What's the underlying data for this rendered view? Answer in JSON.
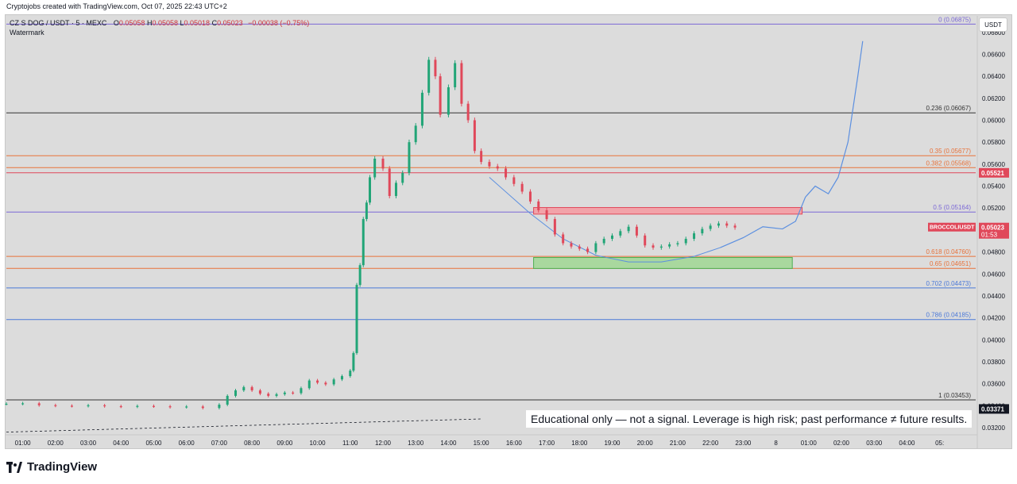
{
  "header": {
    "credit": "Cryptojobs created with TradingView.com, Oct 07, 2025 22:43 UTC+2",
    "symbol": "CZ S DOG / USDT · 5 · MEXC",
    "open_label": "O",
    "open": "0.05058",
    "high_label": "H",
    "high": "0.05058",
    "low_label": "L",
    "low": "0.05018",
    "close_label": "C",
    "close": "0.05023",
    "change": "−0.00038 (−0.75%)",
    "watermark": "Watermark",
    "currency_button": "USDT"
  },
  "footer": {
    "disclaimer": "Educational only — not a signal. Leverage is high risk; past performance ≠ future results.",
    "brand": "TradingView",
    "brand_icon": "tradingview-logo-icon"
  },
  "colors": {
    "background": "#dcdcdc",
    "up": "#22a577",
    "down": "#e0485a",
    "fib_purple": "#7b68d6",
    "fib_black": "#333333",
    "fib_orange": "#e8723a",
    "fib_blue": "#4a78d8",
    "projection": "#5b8fe0"
  },
  "chart_data": {
    "type": "candlestick",
    "symbol": "CZ S DOG / USDT",
    "interval": "5",
    "exchange": "MEXC",
    "ylim": [
      0.0315,
      0.0695
    ],
    "x_range_hours": [
      0.5,
      30.1
    ],
    "x_ticks": [
      {
        "hour": 1,
        "label": "01:00"
      },
      {
        "hour": 2,
        "label": "02:00"
      },
      {
        "hour": 3,
        "label": "03:00"
      },
      {
        "hour": 4,
        "label": "04:00"
      },
      {
        "hour": 5,
        "label": "05:00"
      },
      {
        "hour": 6,
        "label": "06:00"
      },
      {
        "hour": 7,
        "label": "07:00"
      },
      {
        "hour": 8,
        "label": "08:00"
      },
      {
        "hour": 9,
        "label": "09:00"
      },
      {
        "hour": 10,
        "label": "10:00"
      },
      {
        "hour": 11,
        "label": "11:00"
      },
      {
        "hour": 12,
        "label": "12:00"
      },
      {
        "hour": 13,
        "label": "13:00"
      },
      {
        "hour": 14,
        "label": "14:00"
      },
      {
        "hour": 15,
        "label": "15:00"
      },
      {
        "hour": 16,
        "label": "16:00"
      },
      {
        "hour": 17,
        "label": "17:00"
      },
      {
        "hour": 18,
        "label": "18:00"
      },
      {
        "hour": 19,
        "label": "19:00"
      },
      {
        "hour": 20,
        "label": "20:00"
      },
      {
        "hour": 21,
        "label": "21:00"
      },
      {
        "hour": 22,
        "label": "22:00"
      },
      {
        "hour": 23,
        "label": "23:00"
      },
      {
        "hour": 24,
        "label": "8"
      },
      {
        "hour": 25,
        "label": "01:00"
      },
      {
        "hour": 26,
        "label": "02:00"
      },
      {
        "hour": 27,
        "label": "03:00"
      },
      {
        "hour": 28,
        "label": "04:00"
      },
      {
        "hour": 29,
        "label": "05:"
      }
    ],
    "y_ticks": [
      "0.06800",
      "0.06600",
      "0.06400",
      "0.06200",
      "0.06000",
      "0.05800",
      "0.05600",
      "0.05400",
      "0.05200",
      "0.05000",
      "0.04800",
      "0.04600",
      "0.04400",
      "0.04200",
      "0.04000",
      "0.03800",
      "0.03600",
      "0.03400",
      "0.03200"
    ],
    "fib_levels": [
      {
        "ratio": "0",
        "price": 0.06875,
        "label": "0 (0.06875)",
        "color": "#7b68d6"
      },
      {
        "ratio": "0.236",
        "price": 0.06067,
        "label": "0.236 (0.06067)",
        "color": "#333333"
      },
      {
        "ratio": "0.35",
        "price": 0.05677,
        "label": "0.35 (0.05677)",
        "color": "#e8723a"
      },
      {
        "ratio": "0.382",
        "price": 0.05568,
        "label": "0.382 (0.05568)",
        "color": "#e8723a"
      },
      {
        "ratio": "0.5",
        "price": 0.05164,
        "label": "0.5 (0.05164)",
        "color": "#7b68d6"
      },
      {
        "ratio": "0.618",
        "price": 0.0476,
        "label": "0.618 (0.04760)",
        "color": "#e8723a"
      },
      {
        "ratio": "0.65",
        "price": 0.04651,
        "label": "0.65 (0.04651)",
        "color": "#e8723a"
      },
      {
        "ratio": "0.702",
        "price": 0.04473,
        "label": "0.702 (0.04473)",
        "color": "#4a78d8"
      },
      {
        "ratio": "0.786",
        "price": 0.04185,
        "label": "0.786 (0.04185)",
        "color": "#4a78d8"
      },
      {
        "ratio": "1",
        "price": 0.03453,
        "label": "1 (0.03453)",
        "color": "#333333"
      }
    ],
    "horizontal_line": {
      "price": 0.05521,
      "color": "#e0485a"
    },
    "price_tags": [
      {
        "text": "0.05521",
        "price": 0.05521,
        "color": "#e0485a"
      },
      {
        "text": "0.03371",
        "price": 0.03371,
        "color": "#131722"
      }
    ],
    "current_price_tag": {
      "symbol": "BROCCOLIUSDT",
      "price": 0.05023,
      "price_text": "0.05023",
      "countdown": "01:53",
      "color": "#e0485a"
    },
    "zones": [
      {
        "name": "resistance",
        "x_start": 16.6,
        "x_end": 24.8,
        "y_low": 0.05145,
        "y_high": 0.05205,
        "fill": "#f2a3a9",
        "stroke": "#e0485a"
      },
      {
        "name": "support",
        "x_start": 16.6,
        "x_end": 24.5,
        "y_low": 0.0465,
        "y_high": 0.0475,
        "fill": "#a9d89e",
        "stroke": "#4caf50"
      }
    ],
    "arc": [
      [
        15.25,
        0.0548
      ],
      [
        16.5,
        0.0515
      ],
      [
        17.5,
        0.0492
      ],
      [
        18.5,
        0.0477
      ],
      [
        19.5,
        0.0471
      ],
      [
        20.5,
        0.0471
      ],
      [
        21.5,
        0.0476
      ],
      [
        22.3,
        0.0484
      ]
    ],
    "projection": [
      [
        22.3,
        0.0484
      ],
      [
        23.0,
        0.0493
      ],
      [
        23.6,
        0.0503
      ],
      [
        24.2,
        0.0501
      ],
      [
        24.6,
        0.0508
      ],
      [
        24.9,
        0.053
      ],
      [
        25.2,
        0.054
      ],
      [
        25.6,
        0.0533
      ],
      [
        25.9,
        0.0548
      ],
      [
        26.2,
        0.058
      ],
      [
        26.5,
        0.064
      ],
      [
        26.65,
        0.0672
      ]
    ],
    "dashed_baseline": [
      [
        0.5,
        0.0316
      ],
      [
        15.0,
        0.0328
      ]
    ],
    "closes": [
      [
        0.5,
        0.03418
      ],
      [
        1.0,
        0.03422
      ],
      [
        1.5,
        0.03405
      ],
      [
        2.0,
        0.034
      ],
      [
        2.5,
        0.03398
      ],
      [
        3.0,
        0.03404
      ],
      [
        3.5,
        0.03396
      ],
      [
        4.0,
        0.03392
      ],
      [
        4.5,
        0.03398
      ],
      [
        5.0,
        0.03395
      ],
      [
        5.5,
        0.03388
      ],
      [
        6.0,
        0.03393
      ],
      [
        6.5,
        0.0338
      ],
      [
        7.0,
        0.0341
      ],
      [
        7.25,
        0.0349
      ],
      [
        7.5,
        0.0354
      ],
      [
        7.75,
        0.0357
      ],
      [
        8.0,
        0.0354
      ],
      [
        8.25,
        0.0351
      ],
      [
        8.5,
        0.0349
      ],
      [
        8.75,
        0.03505
      ],
      [
        9.0,
        0.0352
      ],
      [
        9.25,
        0.03515
      ],
      [
        9.5,
        0.0356
      ],
      [
        9.75,
        0.0363
      ],
      [
        10.0,
        0.0361
      ],
      [
        10.25,
        0.03595
      ],
      [
        10.5,
        0.0364
      ],
      [
        10.75,
        0.0367
      ],
      [
        11.0,
        0.0372
      ],
      [
        11.1,
        0.0388
      ],
      [
        11.2,
        0.045
      ],
      [
        11.3,
        0.0468
      ],
      [
        11.4,
        0.051
      ],
      [
        11.5,
        0.0525
      ],
      [
        11.6,
        0.0548
      ],
      [
        11.75,
        0.0565
      ],
      [
        12.0,
        0.0556
      ],
      [
        12.2,
        0.0531
      ],
      [
        12.4,
        0.0543
      ],
      [
        12.6,
        0.0552
      ],
      [
        12.8,
        0.058
      ],
      [
        13.0,
        0.0595
      ],
      [
        13.2,
        0.0625
      ],
      [
        13.4,
        0.0655
      ],
      [
        13.6,
        0.064
      ],
      [
        13.75,
        0.0605
      ],
      [
        14.0,
        0.063
      ],
      [
        14.2,
        0.0652
      ],
      [
        14.4,
        0.0615
      ],
      [
        14.6,
        0.06
      ],
      [
        14.8,
        0.0572
      ],
      [
        15.0,
        0.0562
      ],
      [
        15.25,
        0.0558
      ],
      [
        15.5,
        0.0556
      ],
      [
        15.75,
        0.0548
      ],
      [
        16.0,
        0.0542
      ],
      [
        16.25,
        0.0535
      ],
      [
        16.5,
        0.0526
      ],
      [
        16.75,
        0.0518
      ],
      [
        17.0,
        0.051
      ],
      [
        17.25,
        0.0496
      ],
      [
        17.5,
        0.0488
      ],
      [
        17.75,
        0.0485
      ],
      [
        18.0,
        0.0483
      ],
      [
        18.25,
        0.048
      ],
      [
        18.5,
        0.0488
      ],
      [
        18.75,
        0.0492
      ],
      [
        19.0,
        0.0495
      ],
      [
        19.25,
        0.0499
      ],
      [
        19.5,
        0.0503
      ],
      [
        19.75,
        0.0495
      ],
      [
        20.0,
        0.0486
      ],
      [
        20.25,
        0.0484
      ],
      [
        20.5,
        0.0485
      ],
      [
        20.75,
        0.0487
      ],
      [
        21.0,
        0.0488
      ],
      [
        21.25,
        0.0492
      ],
      [
        21.5,
        0.0497
      ],
      [
        21.75,
        0.0501
      ],
      [
        22.0,
        0.0504
      ],
      [
        22.25,
        0.0506
      ],
      [
        22.5,
        0.0504
      ],
      [
        22.75,
        0.05023
      ]
    ]
  }
}
